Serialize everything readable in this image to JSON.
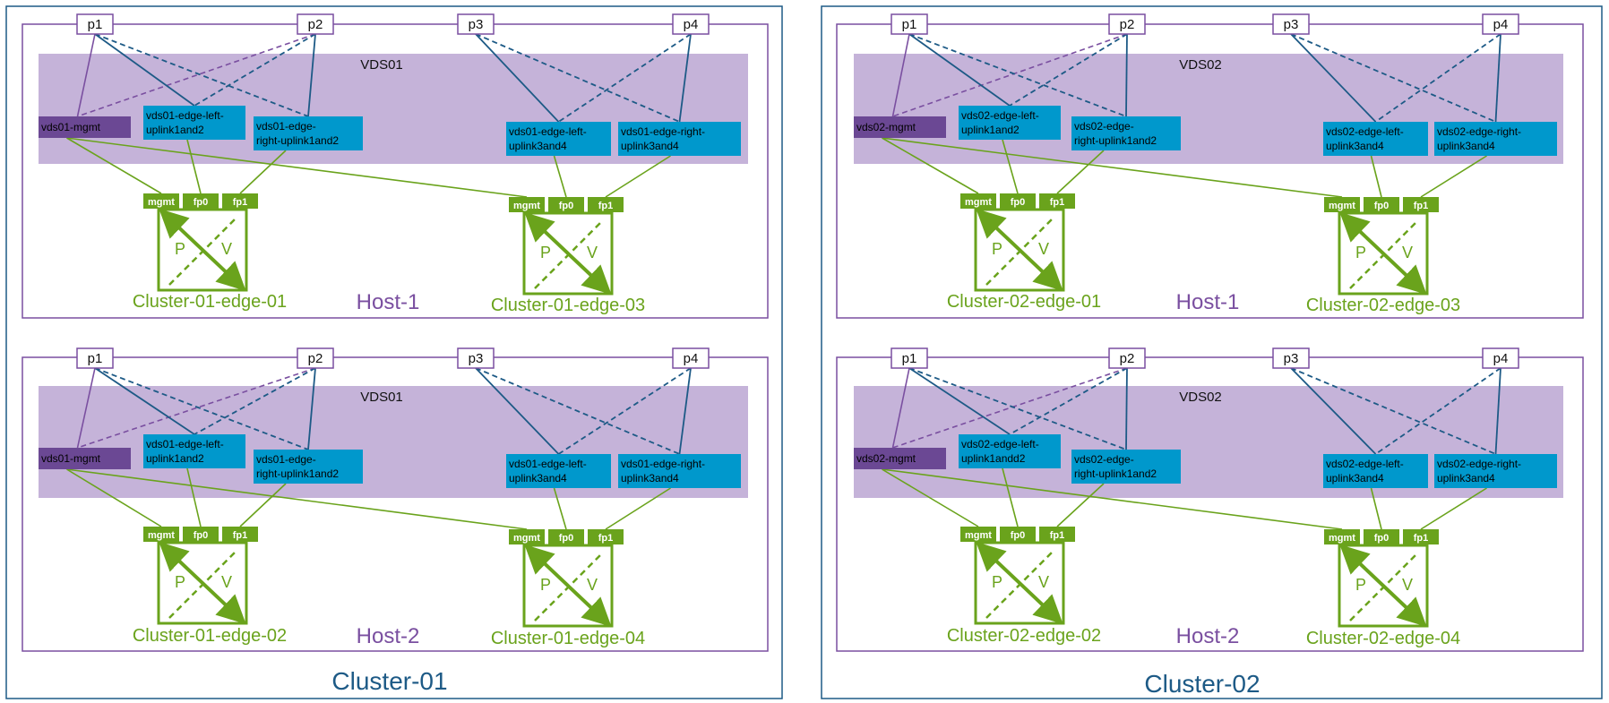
{
  "clusters": [
    {
      "label": "Cluster-01",
      "hosts": [
        {
          "label": "Host-1",
          "vds": "VDS01",
          "pnics": [
            "p1",
            "p2",
            "p3",
            "p4"
          ],
          "mgmt_pg": "vds01-mgmt",
          "pg_left_12": [
            "vds01-edge-left-",
            "uplink1and2"
          ],
          "pg_right_12": [
            "vds01-edge-",
            "right-uplink1and2"
          ],
          "pg_left_34": [
            "vds01-edge-left-",
            "uplink3and4"
          ],
          "pg_right_34": [
            "vds01-edge-right-",
            "uplink3and4"
          ],
          "edges": [
            {
              "label": "Cluster-01-edge-01",
              "ports": [
                "mgmt",
                "fp0",
                "fp1"
              ],
              "p": "P",
              "v": "V"
            },
            {
              "label": "Cluster-01-edge-03",
              "ports": [
                "mgmt",
                "fp0",
                "fp1"
              ],
              "p": "P",
              "v": "V"
            }
          ]
        },
        {
          "label": "Host-2",
          "vds": "VDS01",
          "pnics": [
            "p1",
            "p2",
            "p3",
            "p4"
          ],
          "mgmt_pg": "vds01-mgmt",
          "pg_left_12": [
            "vds01-edge-left-",
            "uplink1and2"
          ],
          "pg_right_12": [
            "vds01-edge-",
            "right-uplink1and2"
          ],
          "pg_left_34": [
            "vds01-edge-left-",
            "uplink3and4"
          ],
          "pg_right_34": [
            "vds01-edge-right-",
            "uplink3and4"
          ],
          "edges": [
            {
              "label": "Cluster-01-edge-02",
              "ports": [
                "mgmt",
                "fp0",
                "fp1"
              ],
              "p": "P",
              "v": "V"
            },
            {
              "label": "Cluster-01-edge-04",
              "ports": [
                "mgmt",
                "fp0",
                "fp1"
              ],
              "p": "P",
              "v": "V"
            }
          ]
        }
      ]
    },
    {
      "label": "Cluster-02",
      "hosts": [
        {
          "label": "Host-1",
          "vds": "VDS02",
          "pnics": [
            "p1",
            "p2",
            "p3",
            "p4"
          ],
          "mgmt_pg": "vds02-mgmt",
          "pg_left_12": [
            "vds02-edge-left-",
            "uplink1and2"
          ],
          "pg_right_12": [
            "vds02-edge-",
            "right-uplink1and2"
          ],
          "pg_left_34": [
            "vds02-edge-left-",
            "uplink3and4"
          ],
          "pg_right_34": [
            "vds02-edge-right-",
            "uplink3and4"
          ],
          "edges": [
            {
              "label": "Cluster-02-edge-01",
              "ports": [
                "mgmt",
                "fp0",
                "fp1"
              ],
              "p": "P",
              "v": "V"
            },
            {
              "label": "Cluster-02-edge-03",
              "ports": [
                "mgmt",
                "fp0",
                "fp1"
              ],
              "p": "P",
              "v": "V"
            }
          ]
        },
        {
          "label": "Host-2",
          "vds": "VDS02",
          "pnics": [
            "p1",
            "p2",
            "p3",
            "p4"
          ],
          "mgmt_pg": "vds02-mgmt",
          "pg_left_12": [
            "vds02-edge-left-",
            "uplink1andd2"
          ],
          "pg_right_12": [
            "vds02-edge-",
            "right-uplink1and2"
          ],
          "pg_left_34": [
            "vds02-edge-left-",
            "uplink3and4"
          ],
          "pg_right_34": [
            "vds02-edge-right-",
            "uplink3and4"
          ],
          "edges": [
            {
              "label": "Cluster-02-edge-02",
              "ports": [
                "mgmt",
                "fp0",
                "fp1"
              ],
              "p": "P",
              "v": "V"
            },
            {
              "label": "Cluster-02-edge-04",
              "ports": [
                "mgmt",
                "fp0",
                "fp1"
              ],
              "p": "P",
              "v": "V"
            }
          ]
        }
      ]
    }
  ],
  "colors": {
    "cluster_border": "#1d5a86",
    "host_border": "#7a4fa0",
    "vds_band": "#c5b3d9",
    "mgmt_pg": "#6b4894",
    "edge_pg": "#0098cc",
    "green": "#6aa31c",
    "uplink_line": "#1d5a86",
    "mgmt_line": "#7a4fa0"
  }
}
